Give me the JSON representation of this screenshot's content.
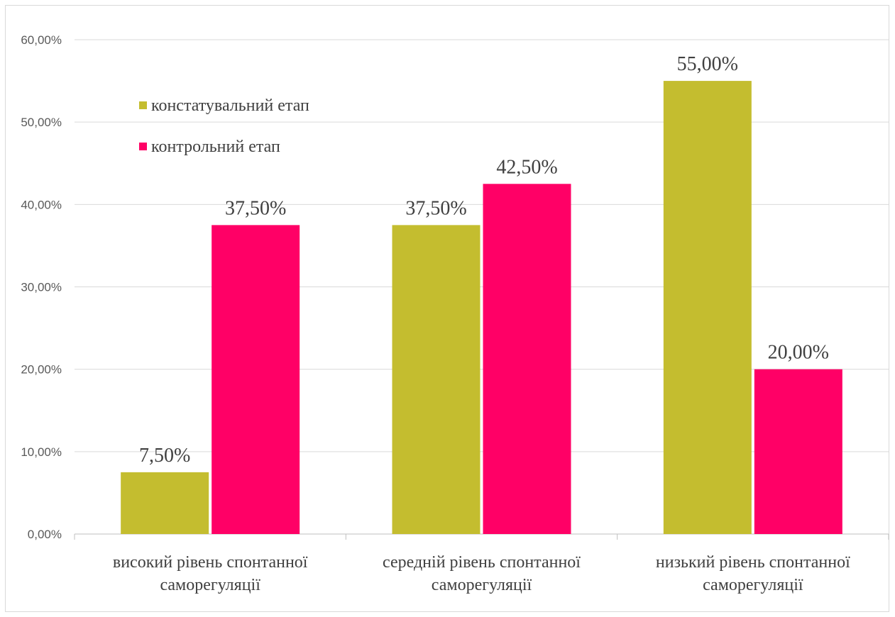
{
  "chart_data": {
    "type": "bar",
    "categories": [
      [
        "високий рівень спонтанної",
        "саморегуляції"
      ],
      [
        "середній рівень спонтанної",
        "саморегуляції"
      ],
      [
        "низький рівень спонтанної",
        "саморегуляції"
      ]
    ],
    "series": [
      {
        "name": "констатувальний етап",
        "color": "#c4bd2f",
        "values": [
          7.5,
          37.5,
          55.0
        ],
        "labels": [
          "7,50%",
          "37,50%",
          "55,00%"
        ]
      },
      {
        "name": "контрольний етап",
        "color": "#ff0066",
        "values": [
          37.5,
          42.5,
          20.0
        ],
        "labels": [
          "37,50%",
          "42,50%",
          "20,00%"
        ]
      }
    ],
    "yticks": [
      "0,00%",
      "10,00%",
      "20,00%",
      "30,00%",
      "40,00%",
      "50,00%",
      "60,00%"
    ],
    "ylim": [
      0,
      60
    ],
    "title": "",
    "xlabel": "",
    "ylabel": "",
    "grid": true,
    "legend_position": "top-left"
  }
}
